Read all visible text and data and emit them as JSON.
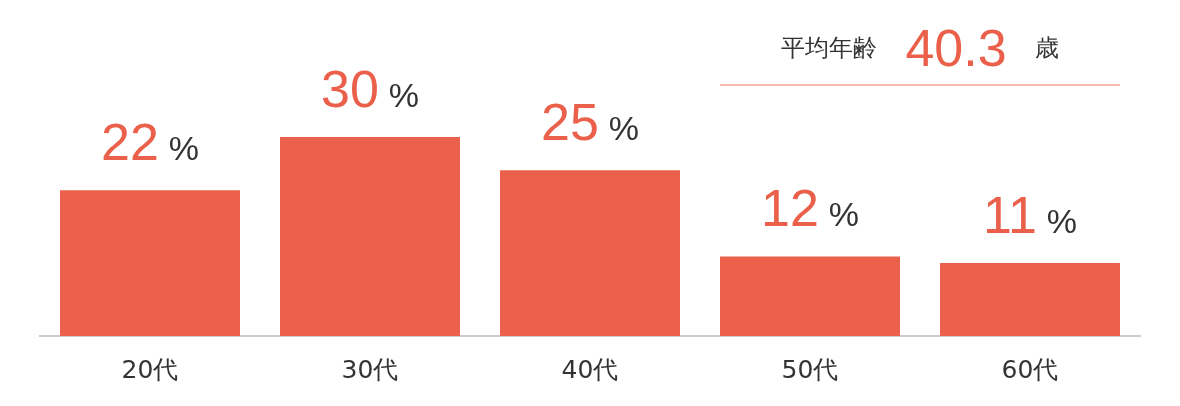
{
  "chart_data": {
    "type": "bar",
    "categories": [
      "20代",
      "30代",
      "40代",
      "50代",
      "60代"
    ],
    "values": [
      22,
      30,
      25,
      12,
      11
    ],
    "value_labels": [
      "22 %",
      "30 %",
      "25 %",
      "12 %",
      "11 %"
    ],
    "color": "#ea604a",
    "annotations": [
      "平均年齢 40.3 歳"
    ],
    "grid": false,
    "legend": false
  }
}
